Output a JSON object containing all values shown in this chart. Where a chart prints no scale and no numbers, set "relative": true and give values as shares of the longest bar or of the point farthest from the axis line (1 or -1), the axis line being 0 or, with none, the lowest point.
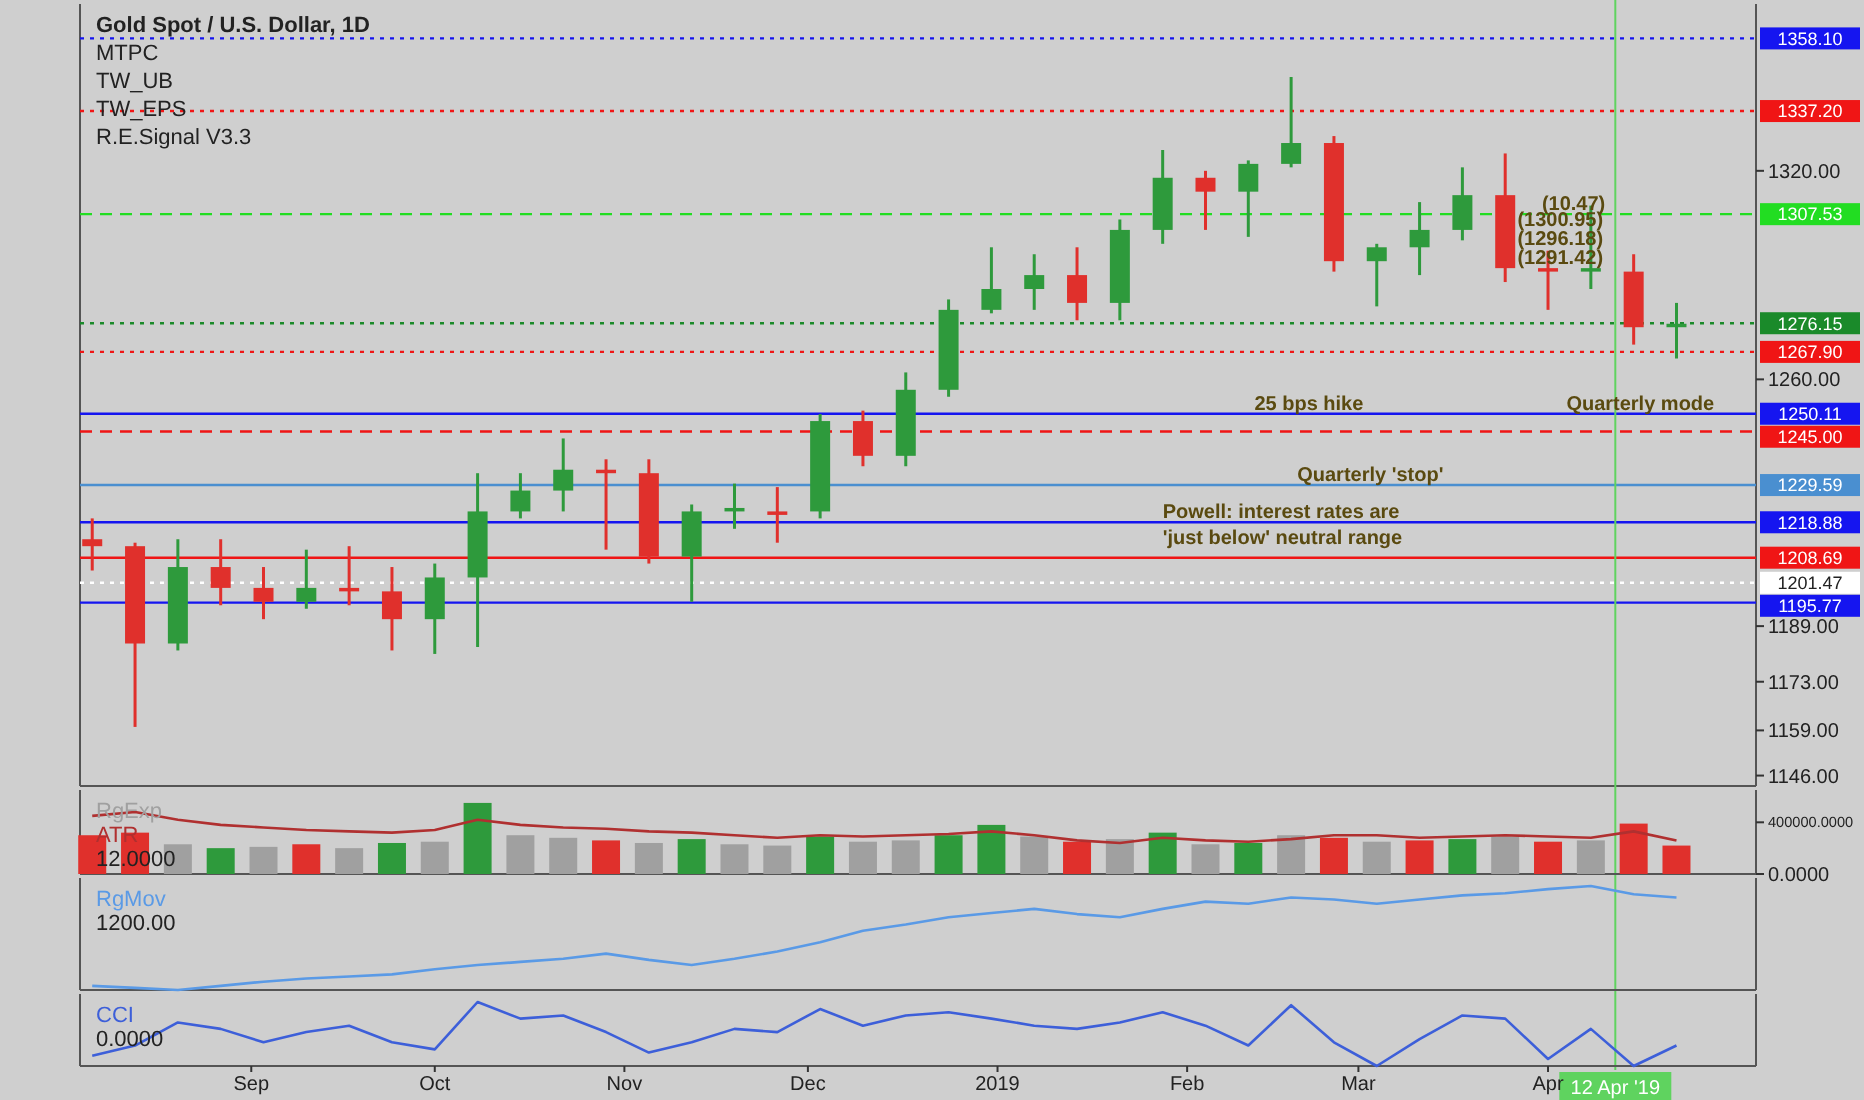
{
  "chart_data": [
    {
      "type": "candlestick",
      "title": "Gold Spot / U.S. Dollar, 1D",
      "xlim": [
        "2018-08-04",
        "2019-05-05"
      ],
      "ylim": [
        1143,
        1368
      ],
      "tick_labels": "y",
      "yticks": [
        {
          "value": 1320,
          "label": "1320.00"
        },
        {
          "value": 1260,
          "label": "1260.00"
        },
        {
          "value": 1189,
          "label": "1189.00"
        },
        {
          "value": 1173,
          "label": "1173.00"
        },
        {
          "value": 1159,
          "label": "1159.00"
        },
        {
          "value": 1146,
          "label": "1146.00"
        }
      ],
      "x": [
        "2018-08-06",
        "2018-08-13",
        "2018-08-20",
        "2018-08-27",
        "2018-09-03",
        "2018-09-10",
        "2018-09-17",
        "2018-09-24",
        "2018-10-01",
        "2018-10-08",
        "2018-10-15",
        "2018-10-22",
        "2018-10-29",
        "2018-11-05",
        "2018-11-12",
        "2018-11-19",
        "2018-11-26",
        "2018-12-03",
        "2018-12-10",
        "2018-12-17",
        "2018-12-24",
        "2018-12-31",
        "2019-01-07",
        "2019-01-14",
        "2019-01-21",
        "2019-01-28",
        "2019-02-04",
        "2019-02-11",
        "2019-02-18",
        "2019-02-25",
        "2019-03-04",
        "2019-03-11",
        "2019-03-18",
        "2019-03-25",
        "2019-04-01",
        "2019-04-08",
        "2019-04-15",
        "2019-04-22"
      ],
      "ohlc": [
        [
          1214,
          1220,
          1205,
          1212
        ],
        [
          1212,
          1213,
          1160,
          1184
        ],
        [
          1184,
          1214,
          1182,
          1206
        ],
        [
          1206,
          1214,
          1195,
          1200
        ],
        [
          1200,
          1206,
          1191,
          1196
        ],
        [
          1196,
          1211,
          1194,
          1200
        ],
        [
          1200,
          1212,
          1195,
          1199
        ],
        [
          1199,
          1206,
          1182,
          1191
        ],
        [
          1191,
          1207,
          1181,
          1203
        ],
        [
          1203,
          1233,
          1183,
          1222
        ],
        [
          1222,
          1233,
          1220,
          1228
        ],
        [
          1228,
          1243,
          1222,
          1234
        ],
        [
          1234,
          1237,
          1211,
          1233
        ],
        [
          1233,
          1237,
          1207,
          1209
        ],
        [
          1209,
          1224,
          1196,
          1222
        ],
        [
          1222,
          1230,
          1217,
          1223
        ],
        [
          1222,
          1229,
          1213,
          1221
        ],
        [
          1222,
          1250,
          1220,
          1248
        ],
        [
          1248,
          1251,
          1235,
          1238
        ],
        [
          1238,
          1262,
          1235,
          1257
        ],
        [
          1257,
          1283,
          1255,
          1280
        ],
        [
          1280,
          1298,
          1279,
          1286
        ],
        [
          1286,
          1296,
          1280,
          1290
        ],
        [
          1290,
          1298,
          1277,
          1282
        ],
        [
          1282,
          1306,
          1277,
          1303
        ],
        [
          1303,
          1326,
          1299,
          1318
        ],
        [
          1318,
          1320,
          1303,
          1314
        ],
        [
          1314,
          1323,
          1301,
          1322
        ],
        [
          1322,
          1347,
          1321,
          1328
        ],
        [
          1328,
          1330,
          1291,
          1294
        ],
        [
          1294,
          1299,
          1281,
          1298
        ],
        [
          1298,
          1311,
          1290,
          1303
        ],
        [
          1303,
          1321,
          1300,
          1313
        ],
        [
          1313,
          1325,
          1288,
          1292
        ],
        [
          1292,
          1297,
          1280,
          1291
        ],
        [
          1291,
          1310,
          1286,
          1292
        ],
        [
          1291,
          1296,
          1270,
          1275
        ],
        [
          1275,
          1282,
          1266,
          1276
        ]
      ],
      "colors": [
        "#e0302c",
        "#e0302c",
        "#2e9a3c",
        "#e0302c",
        "#e0302c",
        "#2e9a3c",
        "#e0302c",
        "#e0302c",
        "#2e9a3c",
        "#2e9a3c",
        "#2e9a3c",
        "#2e9a3c",
        "#e0302c",
        "#e0302c",
        "#2e9a3c",
        "#2e9a3c",
        "#e0302c",
        "#2e9a3c",
        "#e0302c",
        "#2e9a3c",
        "#2e9a3c",
        "#2e9a3c",
        "#2e9a3c",
        "#e0302c",
        "#2e9a3c",
        "#2e9a3c",
        "#e0302c",
        "#2e9a3c",
        "#2e9a3c",
        "#e0302c",
        "#2e9a3c",
        "#2e9a3c",
        "#2e9a3c",
        "#e0302c",
        "#e0302c",
        "#2e9a3c",
        "#e0302c",
        "#2e9a3c"
      ],
      "ref_lines": [
        {
          "axis": "y",
          "value": 1358.1,
          "label": "1358.10",
          "color": "#1515f0",
          "line_style": "dotted"
        },
        {
          "axis": "y",
          "value": 1337.2,
          "label": "1337.20",
          "color": "#f01515",
          "line_style": "dotted"
        },
        {
          "axis": "y",
          "value": 1307.53,
          "label": "1307.53",
          "color": "#22dd22",
          "line_style": "dashed"
        },
        {
          "axis": "y",
          "value": 1276.15,
          "label": "1276.15",
          "color": "#1a8a2a",
          "line_style": "dotted"
        },
        {
          "axis": "y",
          "value": 1267.9,
          "label": "1267.90",
          "color": "#f01515",
          "line_style": "dotted"
        },
        {
          "axis": "y",
          "value": 1250.11,
          "label": "1250.11",
          "color": "#1515f0",
          "line_style": "solid"
        },
        {
          "axis": "y",
          "value": 1245,
          "label": "1245.00",
          "color": "#f01515",
          "line_style": "dashed"
        },
        {
          "axis": "y",
          "value": 1229.59,
          "label": "1229.59",
          "color": "#4a8fd0",
          "line_style": "solid"
        },
        {
          "axis": "y",
          "value": 1218.88,
          "label": "1218.88",
          "color": "#1515f0",
          "line_style": "solid"
        },
        {
          "axis": "y",
          "value": 1208.69,
          "label": "1208.69",
          "color": "#f01515",
          "line_style": "solid"
        },
        {
          "axis": "y",
          "value": 1201.47,
          "label": "1201.47",
          "color": "#ffffff",
          "line_style": "dotted"
        },
        {
          "axis": "y",
          "value": 1195.77,
          "label": "1195.77",
          "color": "#1515f0",
          "line_style": "solid"
        },
        {
          "axis": "x",
          "value": "2019-04-12",
          "label": "12 Apr '19",
          "color": "#5fd35f",
          "line_style": "solid"
        }
      ],
      "annotations": [
        "MTPC",
        "TW_UB",
        "TW_EPS",
        "R.E.Signal V3.3",
        {
          "text": "Powell: interest rates are 'just below' neutral range",
          "x": "2019-01-28",
          "y": 1218.88
        },
        {
          "text": "25 bps hike",
          "x": "2019-02-12",
          "y": 1250.11
        },
        {
          "text": "Quarterly 'stop'",
          "x": "2019-02-19",
          "y": 1229.59
        },
        {
          "text": "Quarterly mode",
          "x": "2019-04-04",
          "y": 1250.11
        },
        {
          "text": "(10.47)",
          "x": "2019-03-31",
          "y": 1307.53
        },
        {
          "text": "(1300.95)",
          "x": "2019-03-27",
          "y": 1303
        },
        {
          "text": "(1296.18)",
          "x": "2019-03-27",
          "y": 1297.5
        },
        {
          "text": "(1291.42)",
          "x": "2019-03-27",
          "y": 1292
        }
      ]
    },
    {
      "type": "bar",
      "xlim": [
        "2018-08-04",
        "2019-05-05"
      ],
      "ylim": [
        0,
        650000
      ],
      "tick_labels": "y",
      "yticks": [
        {
          "value": 0,
          "label": "0.0000"
        },
        {
          "value": 400000,
          "label": "400000.0000"
        }
      ],
      "x": [
        "2018-08-06",
        "2018-08-13",
        "2018-08-20",
        "2018-08-27",
        "2018-09-03",
        "2018-09-10",
        "2018-09-17",
        "2018-09-24",
        "2018-10-01",
        "2018-10-08",
        "2018-10-15",
        "2018-10-22",
        "2018-10-29",
        "2018-11-05",
        "2018-11-12",
        "2018-11-19",
        "2018-11-26",
        "2018-12-03",
        "2018-12-10",
        "2018-12-17",
        "2018-12-24",
        "2018-12-31",
        "2019-01-07",
        "2019-01-14",
        "2019-01-21",
        "2019-01-28",
        "2019-02-04",
        "2019-02-11",
        "2019-02-18",
        "2019-02-25",
        "2019-03-04",
        "2019-03-11",
        "2019-03-18",
        "2019-03-25",
        "2019-04-01",
        "2019-04-08",
        "2019-04-15",
        "2019-04-22"
      ],
      "annotations": [
        "12.0000"
      ],
      "series": [
        {
          "name": "RgExp",
          "type": "bar",
          "color": "#a0a0a0",
          "colors": [
            "#e0302c",
            "#e0302c",
            "#a0a0a0",
            "#2e9a3c",
            "#a0a0a0",
            "#e0302c",
            "#a0a0a0",
            "#2e9a3c",
            "#a0a0a0",
            "#2e9a3c",
            "#a0a0a0",
            "#a0a0a0",
            "#e0302c",
            "#a0a0a0",
            "#2e9a3c",
            "#a0a0a0",
            "#a0a0a0",
            "#2e9a3c",
            "#a0a0a0",
            "#a0a0a0",
            "#2e9a3c",
            "#2e9a3c",
            "#a0a0a0",
            "#e0302c",
            "#a0a0a0",
            "#2e9a3c",
            "#a0a0a0",
            "#2e9a3c",
            "#a0a0a0",
            "#e0302c",
            "#a0a0a0",
            "#e0302c",
            "#2e9a3c",
            "#a0a0a0",
            "#e0302c",
            "#a0a0a0",
            "#e0302c",
            "#e0302c"
          ],
          "values": [
            300000,
            320000,
            230000,
            200000,
            210000,
            230000,
            200000,
            240000,
            250000,
            550000,
            300000,
            280000,
            260000,
            240000,
            270000,
            230000,
            220000,
            290000,
            250000,
            260000,
            300000,
            380000,
            290000,
            250000,
            270000,
            320000,
            230000,
            240000,
            300000,
            280000,
            250000,
            260000,
            270000,
            290000,
            250000,
            260000,
            390000,
            220000
          ]
        },
        {
          "name": "ATR",
          "type": "line",
          "color": "#b03030",
          "values": [
            450000,
            480000,
            420000,
            380000,
            360000,
            340000,
            330000,
            320000,
            340000,
            420000,
            380000,
            360000,
            350000,
            330000,
            320000,
            300000,
            280000,
            300000,
            290000,
            300000,
            310000,
            330000,
            300000,
            260000,
            240000,
            280000,
            260000,
            250000,
            270000,
            300000,
            300000,
            280000,
            290000,
            300000,
            290000,
            280000,
            330000,
            260000
          ]
        }
      ]
    },
    {
      "type": "line",
      "relative": true,
      "xlim": [
        "2018-08-04",
        "2019-05-05"
      ],
      "tick_labels": false,
      "x": [
        "2018-08-06",
        "2018-08-13",
        "2018-08-20",
        "2018-08-27",
        "2018-09-03",
        "2018-09-10",
        "2018-09-17",
        "2018-09-24",
        "2018-10-01",
        "2018-10-08",
        "2018-10-15",
        "2018-10-22",
        "2018-10-29",
        "2018-11-05",
        "2018-11-12",
        "2018-11-19",
        "2018-11-26",
        "2018-12-03",
        "2018-12-10",
        "2018-12-17",
        "2018-12-24",
        "2018-12-31",
        "2019-01-07",
        "2019-01-14",
        "2019-01-21",
        "2019-01-28",
        "2019-02-04",
        "2019-02-11",
        "2019-02-18",
        "2019-02-25",
        "2019-03-04",
        "2019-03-11",
        "2019-03-18",
        "2019-03-25",
        "2019-04-01",
        "2019-04-08",
        "2019-04-15",
        "2019-04-22"
      ],
      "annotations": [
        "1200.00"
      ],
      "series": [
        {
          "name": "RgMov",
          "color": "#5a9ae6",
          "values": [
            0.04,
            0.02,
            0,
            0.04,
            0.08,
            0.11,
            0.13,
            0.15,
            0.2,
            0.24,
            0.27,
            0.3,
            0.35,
            0.29,
            0.24,
            0.3,
            0.37,
            0.46,
            0.57,
            0.63,
            0.7,
            0.74,
            0.78,
            0.73,
            0.7,
            0.78,
            0.85,
            0.83,
            0.89,
            0.87,
            0.83,
            0.87,
            0.91,
            0.93,
            0.97,
            1,
            0.92,
            0.89
          ]
        }
      ]
    },
    {
      "type": "line",
      "relative": true,
      "xlim": [
        "2018-08-04",
        "2019-05-05"
      ],
      "tick_labels": "x",
      "xticks": [
        {
          "value": "2018-09-01",
          "label": "Sep"
        },
        {
          "value": "2018-10-01",
          "label": "Oct"
        },
        {
          "value": "2018-11-01",
          "label": "Nov"
        },
        {
          "value": "2018-12-01",
          "label": "Dec"
        },
        {
          "value": "2019-01-01",
          "label": "2019"
        },
        {
          "value": "2019-02-01",
          "label": "Feb"
        },
        {
          "value": "2019-03-01",
          "label": "Mar"
        },
        {
          "value": "2019-04-01",
          "label": "Apr"
        }
      ],
      "x": [
        "2018-08-06",
        "2018-08-13",
        "2018-08-20",
        "2018-08-27",
        "2018-09-03",
        "2018-09-10",
        "2018-09-17",
        "2018-09-24",
        "2018-10-01",
        "2018-10-08",
        "2018-10-15",
        "2018-10-22",
        "2018-10-29",
        "2018-11-05",
        "2018-11-12",
        "2018-11-19",
        "2018-11-26",
        "2018-12-03",
        "2018-12-10",
        "2018-12-17",
        "2018-12-24",
        "2018-12-31",
        "2019-01-07",
        "2019-01-14",
        "2019-01-21",
        "2019-01-28",
        "2019-02-04",
        "2019-02-11",
        "2019-02-18",
        "2019-02-25",
        "2019-03-04",
        "2019-03-11",
        "2019-03-18",
        "2019-03-25",
        "2019-04-01",
        "2019-04-08",
        "2019-04-15",
        "2019-04-22"
      ],
      "annotations": [
        "0.0000"
      ],
      "series": [
        {
          "name": "CCI",
          "color": "#3d5fd9",
          "values": [
            0.16,
            0.32,
            0.68,
            0.58,
            0.37,
            0.53,
            0.63,
            0.37,
            0.26,
            1,
            0.74,
            0.79,
            0.53,
            0.21,
            0.37,
            0.58,
            0.53,
            0.89,
            0.63,
            0.79,
            0.84,
            0.74,
            0.63,
            0.58,
            0.68,
            0.84,
            0.63,
            0.32,
            0.95,
            0.37,
            0,
            0.42,
            0.79,
            0.74,
            0.11,
            0.58,
            0,
            0.32
          ]
        }
      ]
    }
  ]
}
